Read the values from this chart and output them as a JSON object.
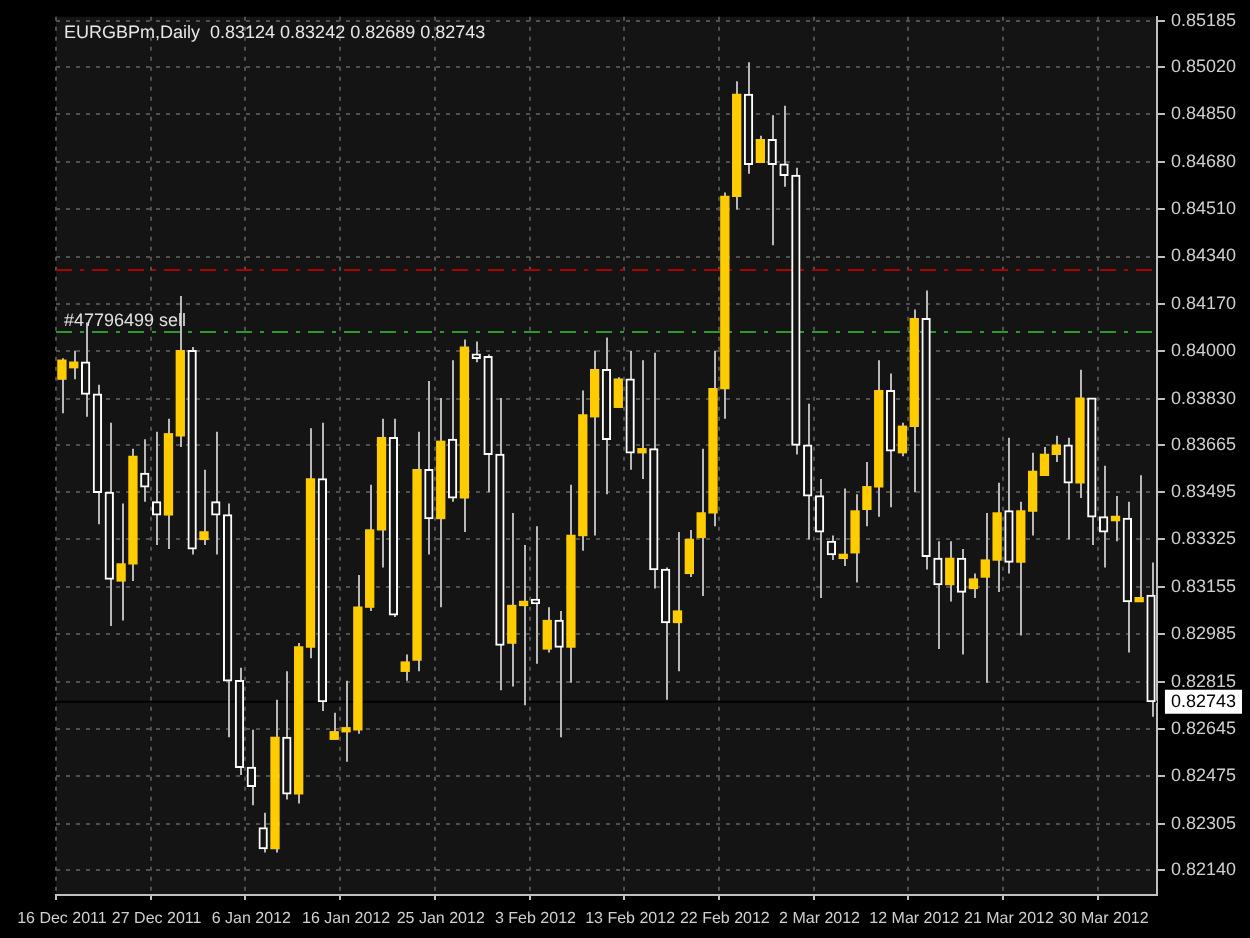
{
  "chart_data": {
    "type": "candlestick",
    "title": "EURGBPm,Daily  0.83124 0.83242 0.82689 0.82743",
    "categories": [
      "16 Dec 2011",
      null,
      null,
      null,
      null,
      null,
      null,
      null,
      "27 Dec 2011",
      null,
      null,
      null,
      null,
      null,
      null,
      null,
      "6 Jan 2012",
      null,
      null,
      null,
      null,
      null,
      null,
      null,
      "16 Jan 2012",
      null,
      null,
      null,
      null,
      null,
      null,
      null,
      "25 Jan 2012",
      null,
      null,
      null,
      null,
      null,
      null,
      null,
      "3 Feb 2012",
      null,
      null,
      null,
      null,
      null,
      null,
      null,
      "13 Feb 2012",
      null,
      null,
      null,
      null,
      null,
      null,
      null,
      "22 Feb 2012",
      null,
      null,
      null,
      null,
      null,
      null,
      null,
      "2 Mar 2012",
      null,
      null,
      null,
      null,
      null,
      null,
      null,
      "12 Mar 2012",
      null,
      null,
      null,
      null,
      null,
      null,
      null,
      "21 Mar 2012",
      null,
      null,
      null,
      null,
      null,
      null,
      null,
      "30 Mar 2012",
      null,
      null,
      null,
      null
    ],
    "ohlc": [
      [
        0.839,
        0.83975,
        0.83778,
        0.83968
      ],
      [
        0.83941,
        0.84002,
        0.839,
        0.83961
      ],
      [
        0.83961,
        0.84103,
        0.83765,
        0.83846
      ],
      [
        0.83846,
        0.8388,
        0.83379,
        0.83494
      ],
      [
        0.83494,
        0.83744,
        0.83014,
        0.83183
      ],
      [
        0.83176,
        0.83454,
        0.83034,
        0.83237
      ],
      [
        0.83237,
        0.8365,
        0.83176,
        0.83623
      ],
      [
        0.83562,
        0.83684,
        0.8346,
        0.83514
      ],
      [
        0.8346,
        0.83711,
        0.83305,
        0.83413
      ],
      [
        0.83413,
        0.83758,
        0.83291,
        0.83704
      ],
      [
        0.83697,
        0.84198,
        0.83657,
        0.84002
      ],
      [
        0.84002,
        0.84015,
        0.83271,
        0.83291
      ],
      [
        0.83325,
        0.83575,
        0.83305,
        0.83352
      ],
      [
        0.8346,
        0.83711,
        0.83271,
        0.83413
      ],
      [
        0.83413,
        0.83454,
        0.82615,
        0.82818
      ],
      [
        0.82818,
        0.82865,
        0.8248,
        0.82507
      ],
      [
        0.82507,
        0.82642,
        0.82371,
        0.82439
      ],
      [
        0.8229,
        0.82344,
        0.82202,
        0.82216
      ],
      [
        0.82216,
        0.8275,
        0.82202,
        0.82615
      ],
      [
        0.82615,
        0.82852,
        0.82392,
        0.82412
      ],
      [
        0.82412,
        0.82953,
        0.82378,
        0.82939
      ],
      [
        0.82939,
        0.83724,
        0.82899,
        0.83542
      ],
      [
        0.83542,
        0.83744,
        0.82709,
        0.82743
      ],
      [
        0.82608,
        0.82703,
        0.82608,
        0.82635
      ],
      [
        0.82635,
        0.82818,
        0.82527,
        0.82648
      ],
      [
        0.82642,
        0.83197,
        0.82628,
        0.83082
      ],
      [
        0.83082,
        0.83521,
        0.83068,
        0.83359
      ],
      [
        0.83359,
        0.83758,
        0.83224,
        0.8369
      ],
      [
        0.8369,
        0.83758,
        0.83047,
        0.83054
      ],
      [
        0.82852,
        0.82912,
        0.82818,
        0.82885
      ],
      [
        0.82892,
        0.83711,
        0.82852,
        0.83575
      ],
      [
        0.83575,
        0.83893,
        0.83271,
        0.834
      ],
      [
        0.834,
        0.83832,
        0.83082,
        0.83677
      ],
      [
        0.83684,
        0.83968,
        0.8346,
        0.83474
      ],
      [
        0.83474,
        0.84042,
        0.83352,
        0.84015
      ],
      [
        0.83988,
        0.84035,
        0.83961,
        0.83975
      ],
      [
        0.83981,
        0.83988,
        0.83494,
        0.8363
      ],
      [
        0.8363,
        0.83832,
        0.82784,
        0.82946
      ],
      [
        0.82953,
        0.8342,
        0.82797,
        0.83088
      ],
      [
        0.83088,
        0.83305,
        0.8273,
        0.83102
      ],
      [
        0.83102,
        0.83372,
        0.82879,
        0.83095
      ],
      [
        0.82932,
        0.83082,
        0.82919,
        0.83034
      ],
      [
        0.83034,
        0.83068,
        0.82615,
        0.82939
      ],
      [
        0.82939,
        0.83521,
        0.82811,
        0.83339
      ],
      [
        0.83339,
        0.83859,
        0.83284,
        0.83772
      ],
      [
        0.83765,
        0.84002,
        0.83339,
        0.83934
      ],
      [
        0.83934,
        0.84049,
        0.83487,
        0.83684
      ],
      [
        0.83799,
        0.83907,
        0.83799,
        0.839
      ],
      [
        0.839,
        0.84002,
        0.83575,
        0.83636
      ],
      [
        0.83636,
        0.83968,
        0.83542,
        0.8365
      ],
      [
        0.8365,
        0.83995,
        0.83149,
        0.83217
      ],
      [
        0.83217,
        0.83224,
        0.8275,
        0.83027
      ],
      [
        0.83027,
        0.83352,
        0.82852,
        0.83068
      ],
      [
        0.83203,
        0.83359,
        0.8319,
        0.83325
      ],
      [
        0.83332,
        0.8365,
        0.83122,
        0.8342
      ],
      [
        0.8342,
        0.84002,
        0.83372,
        0.83866
      ],
      [
        0.83866,
        0.8457,
        0.83758,
        0.84556
      ],
      [
        0.84556,
        0.84969,
        0.84509,
        0.84922
      ],
      [
        0.84922,
        0.85037,
        0.84637,
        0.84671
      ],
      [
        0.84678,
        0.84773,
        0.84678,
        0.84759
      ],
      [
        0.84759,
        0.84847,
        0.8438,
        0.84671
      ],
      [
        0.84671,
        0.84881,
        0.8459,
        0.84631
      ],
      [
        0.84631,
        0.84658,
        0.8363,
        0.83663
      ],
      [
        0.83663,
        0.83812,
        0.83325,
        0.83481
      ],
      [
        0.83481,
        0.83542,
        0.83115,
        0.83352
      ],
      [
        0.83318,
        0.83339,
        0.83251,
        0.83271
      ],
      [
        0.83257,
        0.83508,
        0.8323,
        0.83271
      ],
      [
        0.83277,
        0.83487,
        0.8317,
        0.83427
      ],
      [
        0.83433,
        0.83603,
        0.83372,
        0.83514
      ],
      [
        0.83514,
        0.83968,
        0.83406,
        0.83859
      ],
      [
        0.83859,
        0.8392,
        0.8344,
        0.83643
      ],
      [
        0.83636,
        0.83744,
        0.83623,
        0.83731
      ],
      [
        0.83731,
        0.8415,
        0.83494,
        0.84117
      ],
      [
        0.84117,
        0.84218,
        0.83217,
        0.83264
      ],
      [
        0.83257,
        0.83318,
        0.82932,
        0.83163
      ],
      [
        0.83163,
        0.83318,
        0.83102,
        0.83257
      ],
      [
        0.83257,
        0.83291,
        0.82912,
        0.83136
      ],
      [
        0.83149,
        0.83203,
        0.83115,
        0.83183
      ],
      [
        0.8319,
        0.8342,
        0.82811,
        0.83251
      ],
      [
        0.83251,
        0.83528,
        0.83136,
        0.8342
      ],
      [
        0.83427,
        0.8369,
        0.83203,
        0.83244
      ],
      [
        0.83244,
        0.8346,
        0.8298,
        0.83427
      ],
      [
        0.83427,
        0.83636,
        0.83339,
        0.83569
      ],
      [
        0.83555,
        0.83657,
        0.83555,
        0.8363
      ],
      [
        0.8363,
        0.83697,
        0.83603,
        0.83663
      ],
      [
        0.83663,
        0.8369,
        0.83325,
        0.83528
      ],
      [
        0.83528,
        0.83934,
        0.83474,
        0.83832
      ],
      [
        0.83832,
        0.83832,
        0.83305,
        0.83406
      ],
      [
        0.83406,
        0.83589,
        0.83224,
        0.83352
      ],
      [
        0.83393,
        0.83481,
        0.83318,
        0.83406
      ],
      [
        0.834,
        0.8346,
        0.82919,
        0.83102
      ],
      [
        0.83102,
        0.83555,
        0.83102,
        0.83115
      ],
      [
        0.83124,
        0.83242,
        0.82689,
        0.82743
      ]
    ],
    "ylim": [
      0.8205,
      0.852
    ],
    "yticks": [
      0.85185,
      {
        "value": 0.8502,
        "label": "0.85020"
      },
      {
        "value": 0.8485,
        "label": "0.84850"
      },
      {
        "value": 0.8468,
        "label": "0.84680"
      },
      {
        "value": 0.8451,
        "label": "0.84510"
      },
      {
        "value": 0.8434,
        "label": "0.84340"
      },
      {
        "value": 0.8417,
        "label": "0.84170"
      },
      {
        "value": 0.84,
        "label": "0.84000"
      },
      {
        "value": 0.8383,
        "label": "0.83830"
      },
      0.83665,
      0.83495,
      0.83325,
      0.83155,
      0.82985,
      0.82815,
      0.82645,
      0.82475,
      0.82305,
      {
        "value": 0.8214,
        "label": "0.82140"
      }
    ],
    "grid": true,
    "ref_lines": [
      {
        "axis": "y",
        "value": 0.84292,
        "color": "#b00000",
        "line_style": "dashed"
      },
      {
        "axis": "y",
        "value": 0.84069,
        "label": "#47796499 sell",
        "color": "#2a9a2a",
        "line_style": "dashed"
      },
      {
        "axis": "y",
        "value": 0.82743,
        "label": "0.82743",
        "color": "#000000",
        "line_style": "solid"
      }
    ]
  }
}
